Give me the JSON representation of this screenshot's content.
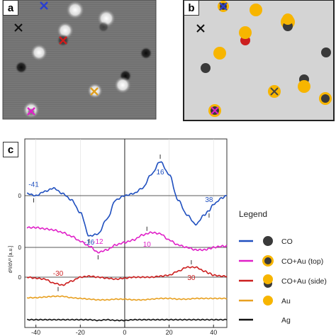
{
  "panels": {
    "a": {
      "letter": "a"
    },
    "b": {
      "letter": "b"
    },
    "c": {
      "letter": "c"
    }
  },
  "colors": {
    "CO": "#1f4fbf",
    "CO+Au (top)": "#e020c8",
    "CO+Au (side)": "#cc1f1f",
    "Au": "#e8a020",
    "Ag": "#111111",
    "gold_marker": "#f7b500",
    "dark_marker": "#3a3a3a",
    "panel_b_bg": "#d4d4d4"
  },
  "icons": {
    "panel_a_markers": [
      "blue-cross-icon",
      "black-cross-icon",
      "red-cross-icon",
      "orange-cross-icon",
      "magenta-cross-icon"
    ],
    "panel_b_markers": [
      "dark-dot-icon",
      "gold-dot-icon",
      "gold-ringed-dark-dot-icon",
      "cross-icon"
    ]
  },
  "chart_data": {
    "type": "line",
    "ylabel": "d²I/dV² [a.u.]",
    "ytick_label": "0",
    "x": [
      -44,
      -40,
      -36,
      -32,
      -28,
      -24,
      -20,
      -16,
      -12,
      -8,
      -4,
      0,
      4,
      8,
      12,
      16,
      20,
      24,
      28,
      32,
      36,
      38,
      40,
      44,
      46
    ],
    "xticks": [
      -40,
      -20,
      0,
      20,
      40
    ],
    "xlim": [
      -45,
      46
    ],
    "series": [
      {
        "name": "CO",
        "values": [
          0.1,
          0.0,
          0.2,
          0.35,
          0.1,
          -0.2,
          -0.8,
          -1.9,
          -1.8,
          -1.1,
          -0.2,
          0.0,
          0.1,
          0.35,
          1.0,
          1.6,
          1.0,
          -0.2,
          -0.9,
          -1.35,
          -0.9,
          -0.7,
          -0.4,
          -0.1,
          0.0
        ]
      },
      {
        "name": "CO+Au (top)",
        "values": [
          0.8,
          0.8,
          0.75,
          0.7,
          0.6,
          0.45,
          0.25,
          0.05,
          -0.2,
          -0.1,
          0.1,
          0.2,
          0.3,
          0.5,
          0.6,
          0.55,
          0.3,
          0.1,
          0.0,
          -0.1,
          -0.1,
          -0.05,
          0.0,
          0.05,
          0.05
        ]
      },
      {
        "name": "CO+Au (side)",
        "values": [
          0.0,
          -0.05,
          -0.1,
          -0.3,
          -0.4,
          -0.2,
          0.0,
          0.05,
          0.0,
          -0.05,
          -0.1,
          -0.05,
          0.0,
          0.0,
          0.0,
          0.05,
          0.1,
          0.3,
          0.5,
          0.5,
          0.3,
          0.2,
          0.1,
          0.05,
          0.05
        ]
      },
      {
        "name": "Au",
        "values": [
          0.1,
          0.1,
          0.15,
          0.2,
          0.2,
          0.1,
          0.05,
          0.0,
          -0.05,
          -0.05,
          0.0,
          0.0,
          -0.05,
          -0.05,
          0.0,
          0.05,
          0.05,
          0.0,
          0.0,
          0.05,
          0.05,
          0.05,
          0.05,
          0.05,
          0.05
        ]
      },
      {
        "name": "Ag",
        "values": [
          0.05,
          0.05,
          0.05,
          0.05,
          0.05,
          0.05,
          0.05,
          0.05,
          0.0,
          0.05,
          0.0,
          0.0,
          0.05,
          0.05,
          0.05,
          0.05,
          0.05,
          0.05,
          0.05,
          0.05,
          0.05,
          0.05,
          0.05,
          0.05,
          0.05
        ]
      }
    ],
    "annotations": [
      {
        "series": "CO",
        "x": -41,
        "label": "-41"
      },
      {
        "series": "CO",
        "x": -16,
        "label": "-16"
      },
      {
        "series": "CO",
        "x": 16,
        "label": "16"
      },
      {
        "series": "CO",
        "x": 38,
        "label": "38"
      },
      {
        "series": "CO+Au (top)",
        "x": -12,
        "label": "-12"
      },
      {
        "series": "CO+Au (top)",
        "x": 10,
        "label": "10"
      },
      {
        "series": "CO+Au (side)",
        "x": -30,
        "label": "-30"
      },
      {
        "series": "CO+Au (side)",
        "x": 30,
        "label": "30"
      }
    ],
    "legend": {
      "title": "Legend",
      "placement": "right",
      "entries": [
        "CO",
        "CO+Au (top)",
        "CO+Au (side)",
        "Au",
        "Ag"
      ]
    }
  }
}
